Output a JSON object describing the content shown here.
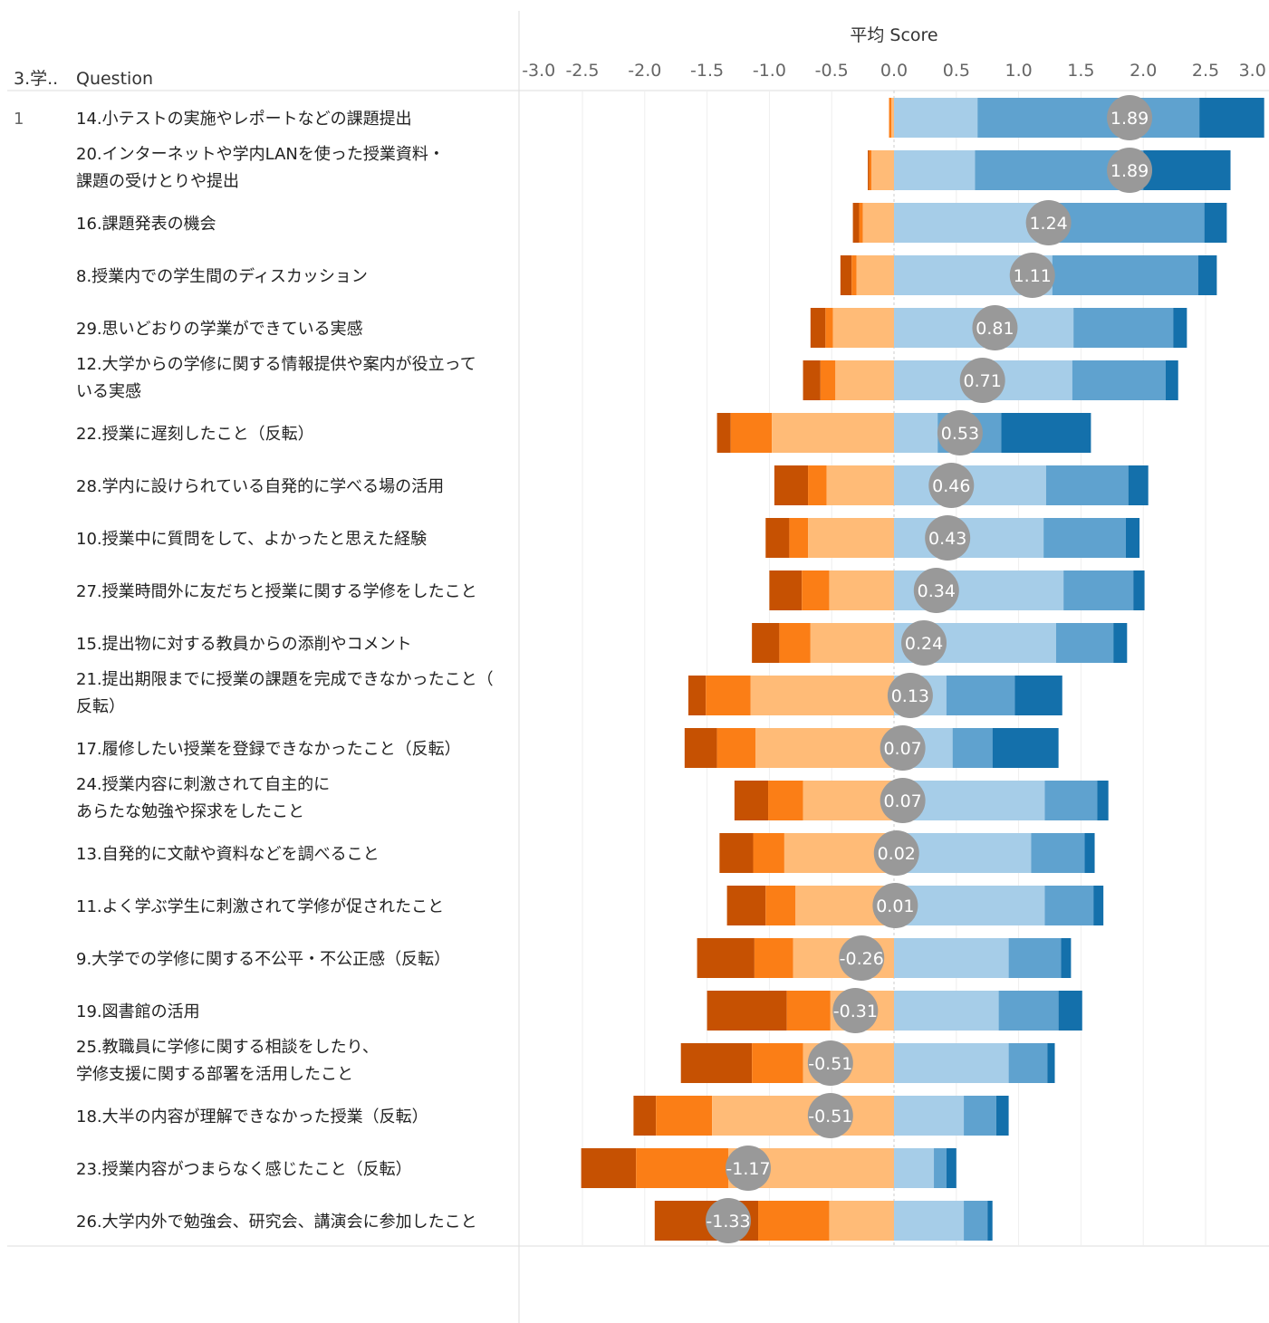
{
  "header": {
    "col1": "3.学..",
    "col2": "Question",
    "axis_title": "平均 Score"
  },
  "colors": {
    "neg_dark": "#c65102",
    "neg_mid": "#fb7e16",
    "neg_light": "#ffbb77",
    "pos_light": "#a6cde8",
    "pos_mid": "#5fa2cf",
    "pos_dark": "#1470ab",
    "bubble": "#999999",
    "gridline": "#eeeeee",
    "zero_line": "#cccccc",
    "divider": "#dddddd"
  },
  "chart_data": {
    "type": "bar",
    "subtype": "diverging-stacked-bar",
    "xlabel": "平均 Score",
    "xlim": [
      -3.0,
      3.0
    ],
    "x_ticks": [
      "-3.0",
      "-2.5",
      "-2.0",
      "-1.5",
      "-1.0",
      "-0.5",
      "0.0",
      "0.5",
      "1.0",
      "1.5",
      "2.0",
      "2.5",
      "3.0"
    ],
    "grid": true,
    "group_label": "1",
    "rows": [
      {
        "label": [
          "14.小テストの実施やレポートなどの課題提出"
        ],
        "neg": [
          0.0,
          0.02,
          0.02
        ],
        "pos": [
          0.67,
          1.78,
          0.52
        ],
        "mean": "1.89"
      },
      {
        "label": [
          "20.インターネットや学内LANを使った授業資料・",
          "課題の受けとりや提出"
        ],
        "neg": [
          0.01,
          0.02,
          0.18
        ],
        "pos": [
          0.65,
          1.35,
          0.7
        ],
        "mean": "1.89"
      },
      {
        "label": [
          "16.課題発表の機会"
        ],
        "neg": [
          0.05,
          0.03,
          0.25
        ],
        "pos": [
          1.27,
          1.22,
          0.18
        ],
        "mean": "1.24"
      },
      {
        "label": [
          "8.授業内での学生間のディスカッション"
        ],
        "neg": [
          0.09,
          0.04,
          0.3
        ],
        "pos": [
          1.27,
          1.17,
          0.15
        ],
        "mean": "1.11"
      },
      {
        "label": [
          "29.思いどおりの学業ができている実感"
        ],
        "neg": [
          0.12,
          0.06,
          0.49
        ],
        "pos": [
          1.44,
          0.8,
          0.11
        ],
        "mean": "0.81"
      },
      {
        "label": [
          "12.大学からの学修に関する情報提供や案内が役立って",
          "いる実感"
        ],
        "neg": [
          0.14,
          0.12,
          0.47
        ],
        "pos": [
          1.43,
          0.75,
          0.1
        ],
        "mean": "0.71"
      },
      {
        "label": [
          "22.授業に遅刻したこと（反転）"
        ],
        "neg": [
          0.11,
          0.33,
          0.98
        ],
        "pos": [
          0.35,
          0.51,
          0.72
        ],
        "mean": "0.53"
      },
      {
        "label": [
          "28.学内に設けられている自発的に学べる場の活用"
        ],
        "neg": [
          0.27,
          0.15,
          0.54
        ],
        "pos": [
          1.22,
          0.66,
          0.16
        ],
        "mean": "0.46"
      },
      {
        "label": [
          "10.授業中に質問をして、よかったと思えた経験"
        ],
        "neg": [
          0.19,
          0.15,
          0.69
        ],
        "pos": [
          1.2,
          0.66,
          0.11
        ],
        "mean": "0.43"
      },
      {
        "label": [
          "27.授業時間外に友だちと授業に関する学修をしたこと"
        ],
        "neg": [
          0.26,
          0.22,
          0.52
        ],
        "pos": [
          1.36,
          0.56,
          0.09
        ],
        "mean": "0.34"
      },
      {
        "label": [
          "15.提出物に対する教員からの添削やコメント"
        ],
        "neg": [
          0.22,
          0.25,
          0.67
        ],
        "pos": [
          1.3,
          0.46,
          0.11
        ],
        "mean": "0.24"
      },
      {
        "label": [
          "21.提出期限までに授業の課題を完成できなかったこと（",
          "反転）"
        ],
        "neg": [
          0.14,
          0.36,
          1.15
        ],
        "pos": [
          0.42,
          0.55,
          0.38
        ],
        "mean": "0.13"
      },
      {
        "label": [
          "17.履修したい授業を登録できなかったこと（反転）"
        ],
        "neg": [
          0.26,
          0.31,
          1.11
        ],
        "pos": [
          0.47,
          0.32,
          0.53
        ],
        "mean": "0.07"
      },
      {
        "label": [
          "24.授業内容に刺激されて自主的に",
          "あらたな勉強や探求をしたこと"
        ],
        "neg": [
          0.27,
          0.28,
          0.73
        ],
        "pos": [
          1.21,
          0.42,
          0.09
        ],
        "mean": "0.07"
      },
      {
        "label": [
          "13.自発的に文献や資料などを調べること"
        ],
        "neg": [
          0.27,
          0.25,
          0.88
        ],
        "pos": [
          1.1,
          0.43,
          0.08
        ],
        "mean": "0.02"
      },
      {
        "label": [
          "11.よく学ぶ学生に刺激されて学修が促されたこと"
        ],
        "neg": [
          0.31,
          0.24,
          0.79
        ],
        "pos": [
          1.21,
          0.39,
          0.08
        ],
        "mean": "0.01"
      },
      {
        "label": [
          "9.大学での学修に関する不公平・不公正感（反転）"
        ],
        "neg": [
          0.46,
          0.31,
          0.81
        ],
        "pos": [
          0.92,
          0.42,
          0.08
        ],
        "mean": "-0.26"
      },
      {
        "label": [
          "19.図書館の活用"
        ],
        "neg": [
          0.64,
          0.35,
          0.51
        ],
        "pos": [
          0.84,
          0.48,
          0.19
        ],
        "mean": "-0.31"
      },
      {
        "label": [
          "25.教職員に学修に関する相談をしたり、",
          "学修支援に関する部署を活用したこと"
        ],
        "neg": [
          0.57,
          0.41,
          0.73
        ],
        "pos": [
          0.92,
          0.31,
          0.06
        ],
        "mean": "-0.51"
      },
      {
        "label": [
          "18.大半の内容が理解できなかった授業（反転）"
        ],
        "neg": [
          0.18,
          0.45,
          1.46
        ],
        "pos": [
          0.56,
          0.26,
          0.1
        ],
        "mean": "-0.51"
      },
      {
        "label": [
          "23.授業内容がつまらなく感じたこと（反転）"
        ],
        "neg": [
          0.44,
          0.74,
          1.33
        ],
        "pos": [
          0.32,
          0.1,
          0.08
        ],
        "mean": "-1.17"
      },
      {
        "label": [
          "26.大学内外で勉強会、研究会、講演会に参加したこと"
        ],
        "neg": [
          0.83,
          0.57,
          0.52
        ],
        "pos": [
          0.56,
          0.19,
          0.04
        ],
        "mean": "-1.33"
      }
    ]
  }
}
